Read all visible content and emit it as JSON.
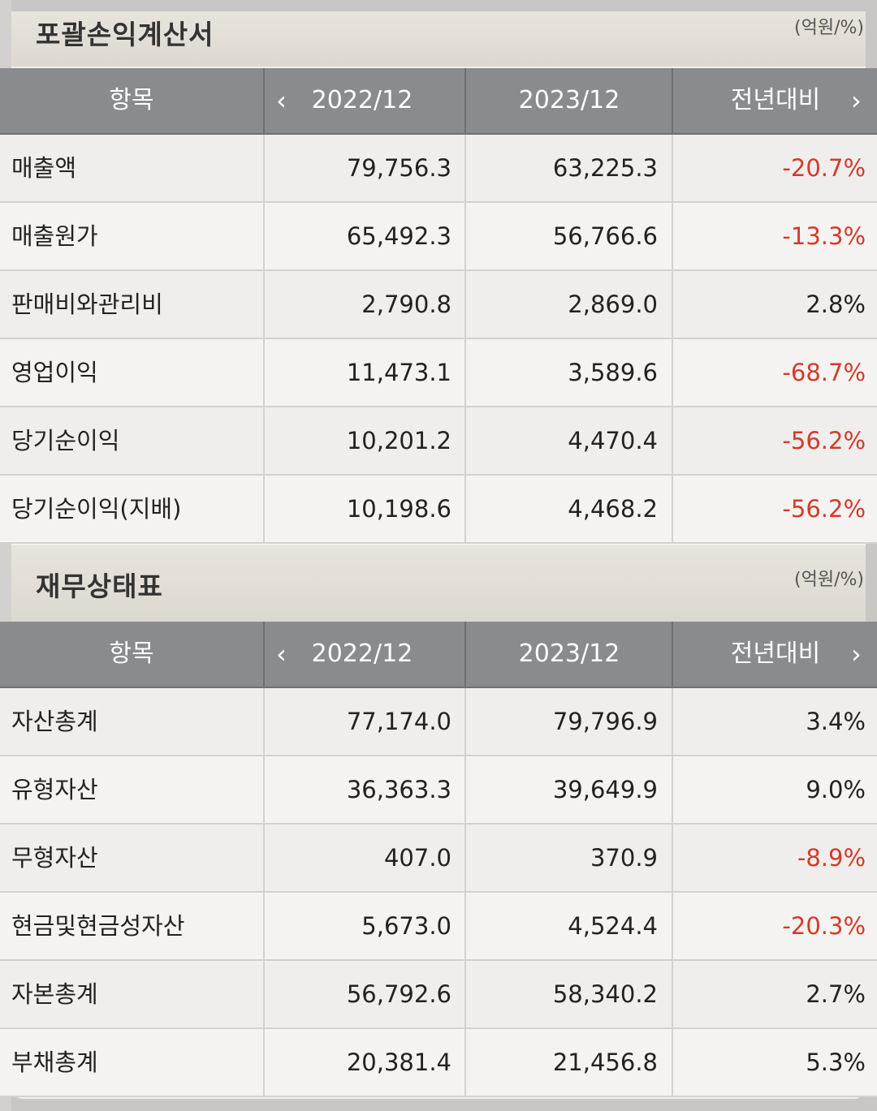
{
  "unit": "(억원/%)",
  "columns": {
    "item": "항목",
    "prev": "2022/12",
    "curr": "2023/12",
    "yoy": "전년대비"
  },
  "income_statement": {
    "title": "포괄손익계산서",
    "rows": [
      {
        "label": "매출액",
        "v2022": "79,756.3",
        "v2023": "63,225.3",
        "yoy": "-20.7%"
      },
      {
        "label": "매출원가",
        "v2022": "65,492.3",
        "v2023": "56,766.6",
        "yoy": "-13.3%"
      },
      {
        "label": "판매비와관리비",
        "v2022": "2,790.8",
        "v2023": "2,869.0",
        "yoy": "2.8%"
      },
      {
        "label": "영업이익",
        "v2022": "11,473.1",
        "v2023": "3,589.6",
        "yoy": "-68.7%"
      },
      {
        "label": "당기순이익",
        "v2022": "10,201.2",
        "v2023": "4,470.4",
        "yoy": "-56.2%"
      },
      {
        "label": "당기순이익(지배)",
        "v2022": "10,198.6",
        "v2023": "4,468.2",
        "yoy": "-56.2%"
      }
    ]
  },
  "balance_sheet": {
    "title": "재무상태표",
    "rows": [
      {
        "label": "자산총계",
        "v2022": "77,174.0",
        "v2023": "79,796.9",
        "yoy": "3.4%"
      },
      {
        "label": "유형자산",
        "v2022": "36,363.3",
        "v2023": "39,649.9",
        "yoy": "9.0%"
      },
      {
        "label": "무형자산",
        "v2022": "407.0",
        "v2023": "370.9",
        "yoy": "-8.9%"
      },
      {
        "label": "현금및현금성자산",
        "v2022": "5,673.0",
        "v2023": "4,524.4",
        "yoy": "-20.3%"
      },
      {
        "label": "자본총계",
        "v2022": "56,792.6",
        "v2023": "58,340.2",
        "yoy": "2.7%"
      },
      {
        "label": "부채총계",
        "v2022": "20,381.4",
        "v2023": "21,456.8",
        "yoy": "5.3%"
      }
    ]
  },
  "colors": {
    "negative": "#d33a2c",
    "header_bg": "#8a8b8f"
  },
  "icons": {
    "prev": "chevron-left-icon",
    "next": "chevron-right-icon"
  }
}
